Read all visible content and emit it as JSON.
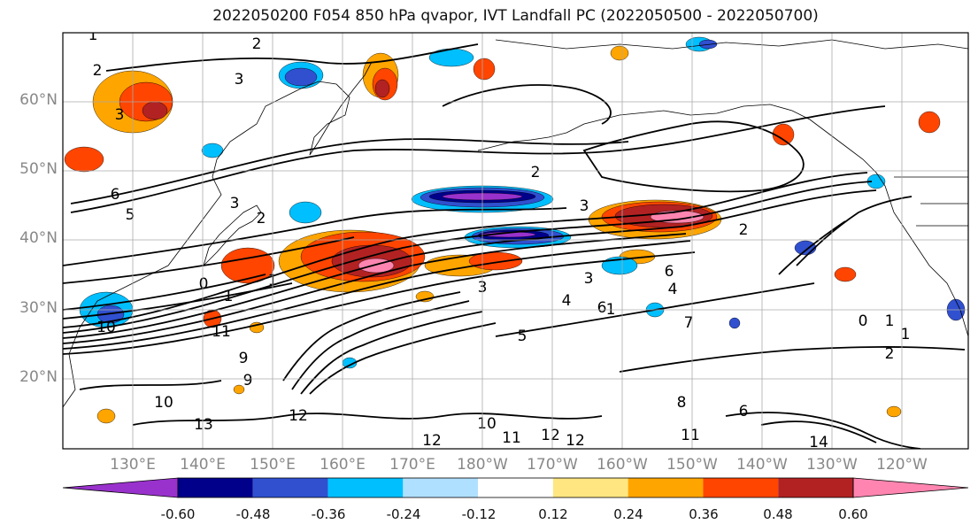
{
  "title": "2022050200 F054 850 hPa qvapor, IVT Landfall PC (2022050500 - 2022050700)",
  "lat_labels": [
    "60°N",
    "50°N",
    "40°N",
    "30°N",
    "20°N"
  ],
  "lon_labels": [
    "130°E",
    "140°E",
    "150°E",
    "160°E",
    "170°E",
    "180°W",
    "170°W",
    "160°W",
    "150°W",
    "140°W",
    "130°W",
    "120°W"
  ],
  "colorbar": {
    "colors": [
      "#9932CC",
      "#00008B",
      "#3050D0",
      "#00BFFF",
      "#B0E0FF",
      "#FFFFFF",
      "#FFE680",
      "#FFA500",
      "#FF4500",
      "#B22222",
      "#FF85B0"
    ],
    "ticks": [
      "-0.60",
      "-0.48",
      "-0.36",
      "-0.24",
      "-0.12",
      "0.12",
      "0.24",
      "0.36",
      "0.48",
      "0.60"
    ]
  },
  "contour_labels": [
    "1",
    "2",
    "2",
    "3",
    "3",
    "2",
    "6",
    "5",
    "3",
    "2",
    "3",
    "2",
    "1",
    "0",
    "1",
    "3",
    "3",
    "1",
    "6",
    "5",
    "4",
    "6",
    "4",
    "7",
    "0",
    "1",
    "1",
    "2",
    "11",
    "9",
    "10",
    "12",
    "13",
    "12",
    "12",
    "10",
    "11",
    "12",
    "8",
    "6",
    "11",
    "14",
    "9",
    "10"
  ]
}
